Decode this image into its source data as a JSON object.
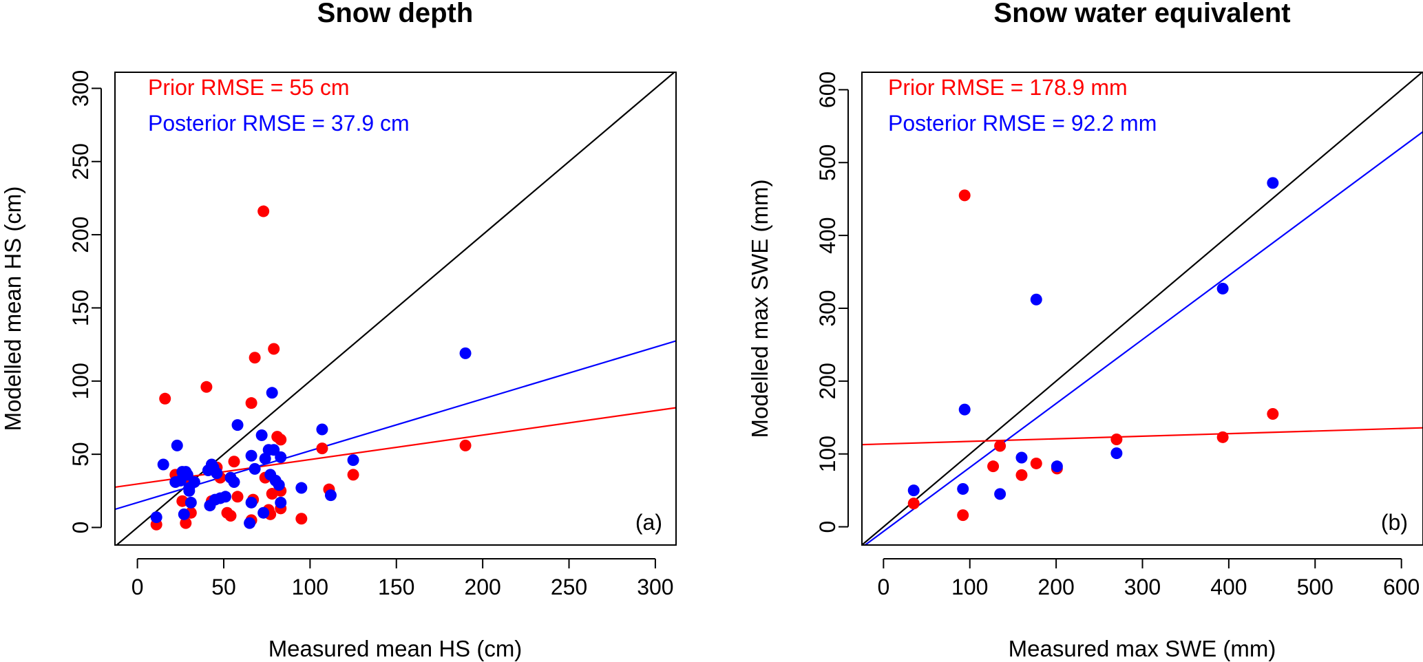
{
  "chart_data": [
    {
      "type": "scatter",
      "panel": "(a)",
      "title": "Snow depth",
      "xlabel": "Measured mean HS (cm)",
      "ylabel": "Modelled mean HS (cm)",
      "xlim": [
        -13,
        312
      ],
      "ylim": [
        -12,
        311
      ],
      "xticks": [
        0,
        50,
        100,
        150,
        200,
        250,
        300
      ],
      "yticks": [
        0,
        50,
        100,
        150,
        200,
        250,
        300
      ],
      "colors": {
        "prior": "#ff0000",
        "posterior": "#0000ff",
        "identity": "#000000"
      },
      "annotations": [
        {
          "text": "Prior RMSE = 55 cm",
          "color": "#ff0000"
        },
        {
          "text": "Posterior RMSE = 37.9 cm",
          "color": "#0000ff"
        }
      ],
      "fits": [
        {
          "name": "prior",
          "color": "#ff0000",
          "intercept": 29.7,
          "slope": 0.167
        },
        {
          "name": "posterior",
          "color": "#0000ff",
          "intercept": 17.0,
          "slope": 0.354
        },
        {
          "name": "identity",
          "color": "#000000",
          "intercept": 0,
          "slope": 1
        }
      ],
      "series": [
        {
          "name": "prior",
          "color": "#ff0000",
          "points": [
            [
              11,
              2
            ],
            [
              16,
              88
            ],
            [
              22,
              36
            ],
            [
              26,
              18
            ],
            [
              28,
              3
            ],
            [
              30,
              33
            ],
            [
              31,
              10
            ],
            [
              40,
              96
            ],
            [
              43,
              18
            ],
            [
              46,
              41
            ],
            [
              48,
              34
            ],
            [
              52,
              10
            ],
            [
              54,
              8
            ],
            [
              56,
              45
            ],
            [
              58,
              21
            ],
            [
              66,
              5
            ],
            [
              66,
              85
            ],
            [
              67,
              19
            ],
            [
              68,
              116
            ],
            [
              73,
              216
            ],
            [
              74,
              34
            ],
            [
              76,
              12
            ],
            [
              77,
              9
            ],
            [
              78,
              23
            ],
            [
              79,
              122
            ],
            [
              81,
              62
            ],
            [
              83,
              60
            ],
            [
              83,
              25
            ],
            [
              83,
              13
            ],
            [
              95,
              6
            ],
            [
              107,
              54
            ],
            [
              111,
              26
            ],
            [
              125,
              36
            ],
            [
              190,
              56
            ],
            [
              24,
              32
            ],
            [
              30,
              30
            ]
          ]
        },
        {
          "name": "posterior",
          "color": "#0000ff",
          "points": [
            [
              11,
              7
            ],
            [
              15,
              43
            ],
            [
              22,
              31
            ],
            [
              23,
              56
            ],
            [
              25,
              32
            ],
            [
              26,
              38
            ],
            [
              27,
              9
            ],
            [
              28,
              38
            ],
            [
              29,
              36
            ],
            [
              30,
              27
            ],
            [
              30,
              25
            ],
            [
              31,
              17
            ],
            [
              33,
              31
            ],
            [
              41,
              39
            ],
            [
              42,
              15
            ],
            [
              43,
              43
            ],
            [
              44,
              41
            ],
            [
              45,
              19
            ],
            [
              46,
              37
            ],
            [
              48,
              20
            ],
            [
              51,
              21
            ],
            [
              54,
              34
            ],
            [
              56,
              31
            ],
            [
              58,
              70
            ],
            [
              65,
              3
            ],
            [
              66,
              17
            ],
            [
              66,
              49
            ],
            [
              68,
              40
            ],
            [
              72,
              63
            ],
            [
              73,
              10
            ],
            [
              74,
              47
            ],
            [
              76,
              53
            ],
            [
              77,
              36
            ],
            [
              78,
              92
            ],
            [
              79,
              53
            ],
            [
              80,
              32
            ],
            [
              82,
              29
            ],
            [
              83,
              48
            ],
            [
              83,
              17
            ],
            [
              95,
              27
            ],
            [
              107,
              67
            ],
            [
              112,
              22
            ],
            [
              125,
              46
            ],
            [
              190,
              119
            ]
          ]
        }
      ]
    },
    {
      "type": "scatter",
      "panel": "(b)",
      "title": "Snow water equivalent",
      "xlabel": "Measured max SWE (mm)",
      "ylabel": "Modelled max SWE (mm)",
      "xlim": [
        -25,
        625
      ],
      "ylim": [
        -25,
        624
      ],
      "xticks": [
        0,
        100,
        200,
        300,
        400,
        500,
        600
      ],
      "yticks": [
        0,
        100,
        200,
        300,
        400,
        500,
        600
      ],
      "colors": {
        "prior": "#ff0000",
        "posterior": "#0000ff",
        "identity": "#000000"
      },
      "annotations": [
        {
          "text": "Prior RMSE = 178.9 mm",
          "color": "#ff0000"
        },
        {
          "text": "Posterior RMSE = 92.2 mm",
          "color": "#0000ff"
        }
      ],
      "fits": [
        {
          "name": "prior",
          "color": "#ff0000",
          "intercept": 113.7,
          "slope": 0.0355
        },
        {
          "name": "posterior",
          "color": "#0000ff",
          "intercept": -6.3,
          "slope": 0.878
        },
        {
          "name": "identity",
          "color": "#000000",
          "intercept": 0,
          "slope": 1
        }
      ],
      "series": [
        {
          "name": "prior",
          "color": "#ff0000",
          "points": [
            [
              35,
              32
            ],
            [
              92,
              16
            ],
            [
              94,
              455
            ],
            [
              127,
              83
            ],
            [
              135,
              111
            ],
            [
              160,
              71
            ],
            [
              177,
              87
            ],
            [
              201,
              80
            ],
            [
              270,
              120
            ],
            [
              393,
              123
            ],
            [
              451,
              155
            ]
          ]
        },
        {
          "name": "posterior",
          "color": "#0000ff",
          "points": [
            [
              35,
              50
            ],
            [
              92,
              52
            ],
            [
              94,
              161
            ],
            [
              135,
              45
            ],
            [
              160,
              95
            ],
            [
              177,
              312
            ],
            [
              201,
              83
            ],
            [
              270,
              101
            ],
            [
              393,
              327
            ],
            [
              451,
              472
            ]
          ]
        }
      ]
    }
  ]
}
